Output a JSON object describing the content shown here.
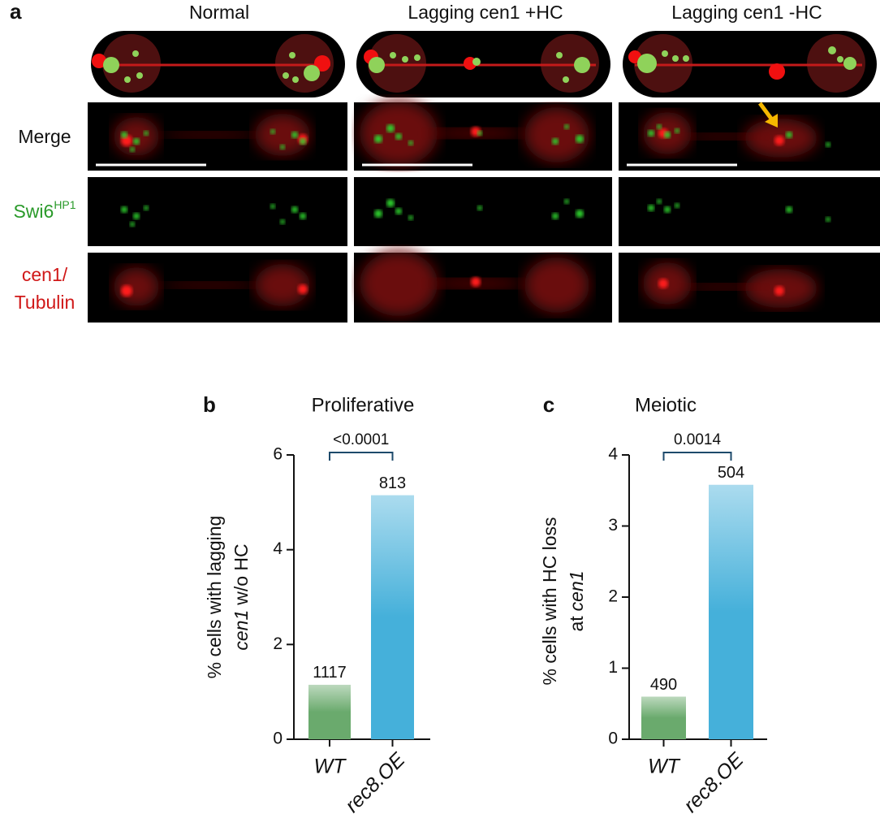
{
  "panel_a": {
    "label": "a",
    "columns": [
      "Normal",
      "Lagging cen1 +HC",
      "Lagging cen1 -HC"
    ],
    "rows": [
      {
        "lines": [
          "Merge"
        ]
      },
      {
        "lines": [
          "Swi6"
        ],
        "sup": "HP1"
      },
      {
        "lines": [
          "cen1/",
          "Tubulin"
        ]
      }
    ]
  },
  "chart_data": [
    {
      "type": "bar",
      "panel_label": "b",
      "title": "Proliferative",
      "y_label": [
        [
          {
            "text": "% cells with lagging",
            "italic": false
          }
        ],
        [
          {
            "text": "cen1",
            "italic": true
          },
          {
            "text": "w/o HC",
            "italic": false
          }
        ]
      ],
      "categories": [
        "WT",
        "rec8.OE"
      ],
      "values": [
        1.15,
        5.15
      ],
      "n_labels": [
        "1117",
        "813"
      ],
      "colors": [
        "#6aaa6d",
        "#45b0da"
      ],
      "p_value_label": "<0.0001",
      "ylim": [
        0,
        6
      ],
      "yticks": [
        0,
        2,
        4,
        6
      ]
    },
    {
      "type": "bar",
      "panel_label": "c",
      "title": "Meiotic",
      "y_label": [
        [
          {
            "text": "% cells with HC loss",
            "italic": false
          }
        ],
        [
          {
            "text": "at",
            "italic": false
          },
          {
            "text": "cen1",
            "italic": true
          }
        ]
      ],
      "categories": [
        "WT",
        "rec8.OE"
      ],
      "values": [
        0.6,
        3.58
      ],
      "n_labels": [
        "490",
        "504"
      ],
      "colors": [
        "#6aaa6d",
        "#45b0da"
      ],
      "p_value_label": "0.0014",
      "ylim": [
        0,
        4
      ],
      "yticks": [
        0,
        1,
        2,
        3,
        4
      ]
    }
  ]
}
